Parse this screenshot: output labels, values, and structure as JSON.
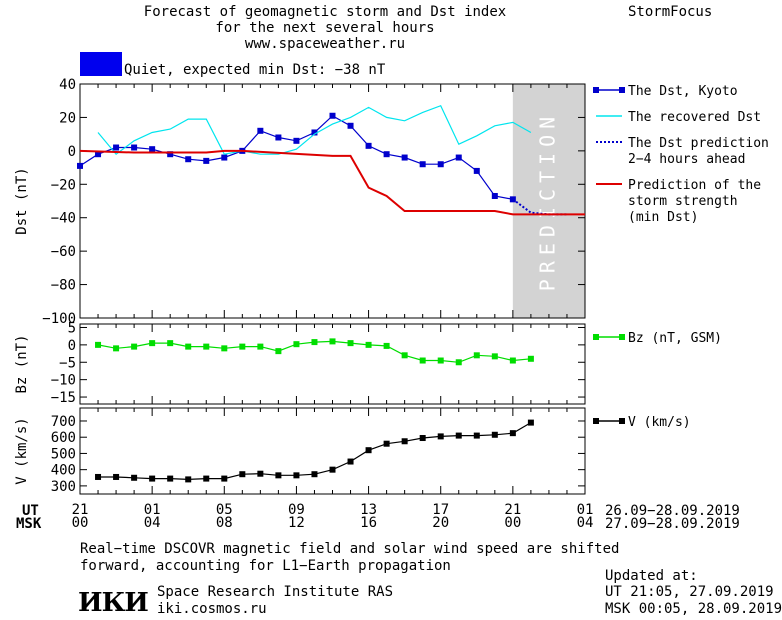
{
  "header": {
    "title_line1": "Forecast of geomagnetic storm and Dst index",
    "title_line2": "for the next several hours",
    "url": "www.spaceweather.ru",
    "brand": "StormFocus",
    "status": "Quiet, expected min Dst: −38 nT",
    "status_color": "#0000ee"
  },
  "prediction_label": "PREDICTION",
  "time_axis": {
    "ut_label": "UT",
    "msk_label": "MSK",
    "ut_ticks": [
      "21",
      "01",
      "05",
      "09",
      "13",
      "17",
      "21",
      "01"
    ],
    "msk_ticks": [
      "00",
      "04",
      "08",
      "12",
      "16",
      "20",
      "00",
      "04"
    ],
    "ut_range": "26.09−28.09.2019",
    "msk_range": "27.09−28.09.2019"
  },
  "note": {
    "line1": "Real−time DSCOVR magnetic field and solar wind speed are shifted",
    "line2": "forward, accounting for L1−Earth propagation"
  },
  "footer": {
    "logo": "ИКИ",
    "institute": "Space Research Institute RAS",
    "site": "iki.cosmos.ru",
    "updated_label": "Updated at:",
    "updated_ut": "UT   21:05, 27.09.2019",
    "updated_msk": "MSK 00:05, 28.09.2019"
  },
  "chart_data": [
    {
      "type": "line",
      "ylabel": "Dst (nT)",
      "ylim": [
        -100,
        40
      ],
      "yticks": [
        40,
        20,
        0,
        -20,
        -40,
        -60,
        -80,
        -100
      ],
      "xlim": [
        0,
        28
      ],
      "prediction_span": [
        24,
        28
      ],
      "series": [
        {
          "name": "The Dst, Kyoto",
          "color": "#0000cc",
          "marker": "square",
          "x": [
            0,
            1,
            2,
            3,
            4,
            5,
            6,
            7,
            8,
            9,
            10,
            11,
            12,
            13,
            14,
            15,
            16,
            17,
            18,
            19,
            20,
            21,
            22,
            23,
            24
          ],
          "y": [
            -9,
            -2,
            2,
            2,
            1,
            -2,
            -5,
            -6,
            -4,
            0,
            12,
            8,
            6,
            11,
            21,
            15,
            3,
            -2,
            -4,
            -8,
            -8,
            -4,
            -12,
            -27,
            -29
          ]
        },
        {
          "name": "The recovered Dst",
          "color": "#00e5ee",
          "marker": "none",
          "x": [
            1,
            2,
            3,
            4,
            5,
            6,
            7,
            8,
            9,
            10,
            11,
            12,
            13,
            14,
            15,
            16,
            17,
            18,
            19,
            20,
            21,
            22,
            23,
            24,
            25
          ],
          "y": [
            11,
            -2,
            6,
            11,
            13,
            19,
            19,
            -2,
            0,
            -2,
            -2,
            1,
            10,
            16,
            20,
            26,
            20,
            18,
            23,
            27,
            4,
            9,
            15,
            17,
            11
          ]
        },
        {
          "name": "The Dst prediction\n2−4 hours ahead",
          "color": "#0000cc",
          "marker": "none",
          "dash": true,
          "x": [
            24,
            25,
            26,
            27
          ],
          "y": [
            -29,
            -37,
            -38,
            -38
          ]
        },
        {
          "name": "Prediction of the\nstorm strength\n(min Dst)",
          "color": "#dd0000",
          "marker": "none",
          "x": [
            0,
            3,
            5,
            6,
            7,
            8,
            9,
            14,
            15,
            16,
            17,
            18,
            19,
            20,
            21,
            22,
            23,
            24,
            25,
            28
          ],
          "y": [
            0,
            -1,
            -1,
            -1,
            -1,
            0,
            0,
            -3,
            -3,
            -22,
            -27,
            -36,
            -36,
            -36,
            -36,
            -36,
            -36,
            -38,
            -38,
            -38
          ]
        }
      ]
    },
    {
      "type": "line",
      "ylabel": "Bz (nT)",
      "ylim": [
        -17,
        6
      ],
      "yticks": [
        5,
        0,
        -5,
        -10,
        -15
      ],
      "xlim": [
        0,
        28
      ],
      "series": [
        {
          "name": "Bz (nT, GSM)",
          "color": "#00dd00",
          "marker": "square",
          "x": [
            1,
            2,
            3,
            4,
            5,
            6,
            7,
            8,
            9,
            10,
            11,
            12,
            13,
            14,
            15,
            16,
            17,
            18,
            19,
            20,
            21,
            22,
            23,
            24,
            25
          ],
          "y": [
            0,
            -1,
            -0.5,
            0.5,
            0.5,
            -0.5,
            -0.5,
            -1,
            -0.5,
            -0.5,
            -1.8,
            0.2,
            0.8,
            1,
            0.5,
            0,
            -0.3,
            -3,
            -4.5,
            -4.5,
            -5,
            -3,
            -3.3,
            -4.5,
            -4
          ]
        }
      ]
    },
    {
      "type": "line",
      "ylabel": "V (km/s)",
      "ylim": [
        250,
        780
      ],
      "yticks": [
        700,
        600,
        500,
        400,
        300
      ],
      "xlim": [
        0,
        28
      ],
      "series": [
        {
          "name": "V (km/s)",
          "color": "#000000",
          "marker": "square",
          "x": [
            1,
            2,
            3,
            4,
            5,
            6,
            7,
            8,
            9,
            10,
            11,
            12,
            13,
            14,
            15,
            16,
            17,
            18,
            19,
            20,
            21,
            22,
            23,
            24,
            25
          ],
          "y": [
            355,
            355,
            350,
            345,
            345,
            340,
            345,
            345,
            372,
            375,
            365,
            365,
            372,
            400,
            450,
            520,
            560,
            575,
            595,
            605,
            610,
            610,
            615,
            625,
            690
          ]
        }
      ]
    }
  ]
}
